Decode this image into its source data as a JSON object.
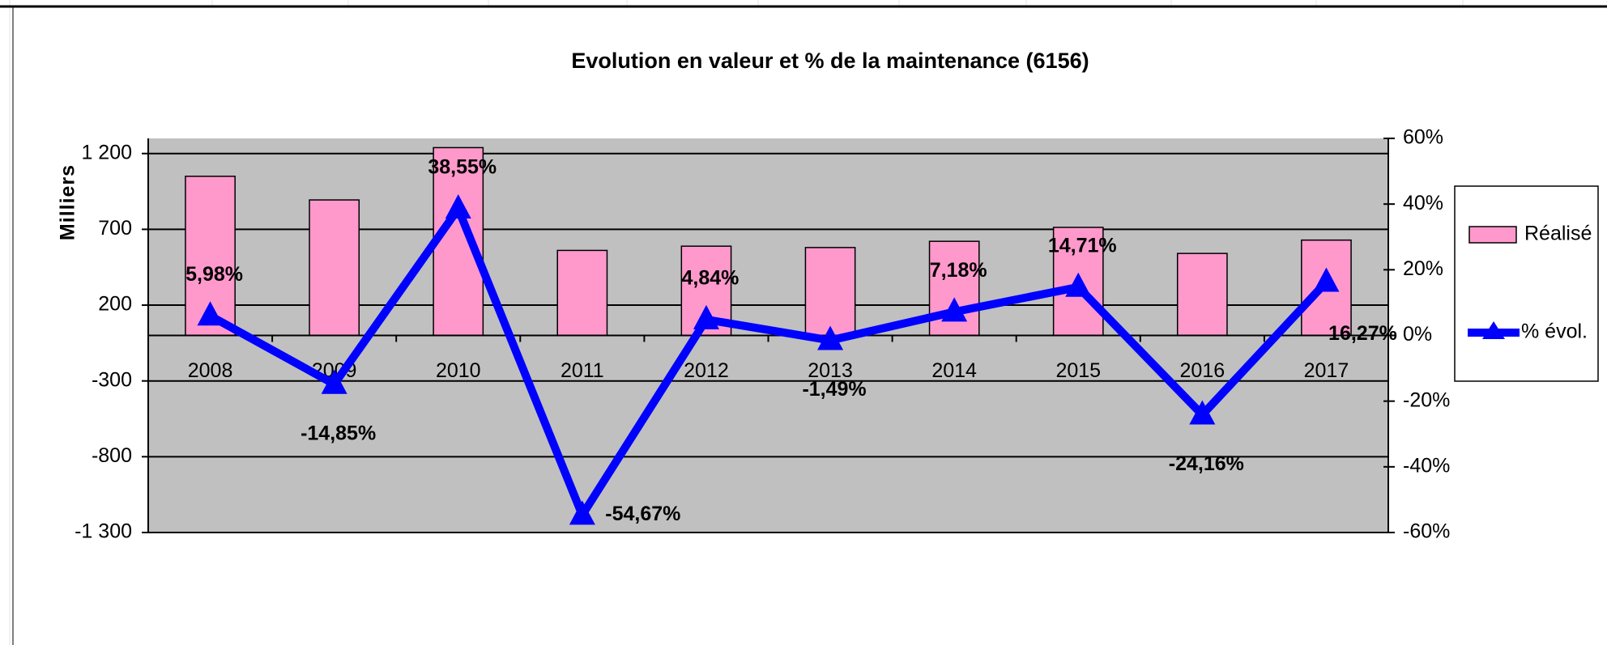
{
  "chart_data": {
    "type": "bar-line",
    "title": "Evolution en valeur et % de la maintenance (6156)",
    "y_label": "Milliers",
    "categories": [
      "2008",
      "2009",
      "2010",
      "2011",
      "2012",
      "2013",
      "2014",
      "2015",
      "2016",
      "2017"
    ],
    "series": [
      {
        "name": "Réalisé",
        "type": "bar",
        "color": "#ff99cc",
        "values": [
          1050,
          894,
          1239,
          561,
          589,
          580,
          621,
          713,
          541,
          629
        ]
      },
      {
        "name": "% évol.",
        "type": "line",
        "axis": "y2",
        "color": "#0000ff",
        "values": [
          5.98,
          -14.85,
          38.55,
          -54.67,
          4.84,
          -1.49,
          7.18,
          14.71,
          -24.16,
          16.27
        ],
        "value_labels": [
          "5,98%",
          "-14,85%",
          "38,55%",
          "-54,67%",
          "4,84%",
          "-1,49%",
          "7,18%",
          "14,71%",
          "-24,16%",
          "16,27%"
        ]
      }
    ],
    "ylim": [
      -1300,
      1300
    ],
    "yticks": [
      {
        "value": -1300,
        "label": "-1 300"
      },
      -800,
      -300,
      200,
      700,
      {
        "value": 1200,
        "label": "1 200"
      }
    ],
    "y2lim": [
      -60,
      60
    ],
    "y2ticks": [
      {
        "value": -60,
        "label": "-60%"
      },
      {
        "value": -40,
        "label": "-40%"
      },
      {
        "value": -20,
        "label": "-20%"
      },
      {
        "value": 0,
        "label": "0%"
      },
      {
        "value": 20,
        "label": "20%"
      },
      {
        "value": 40,
        "label": "40%"
      },
      {
        "value": 60,
        "label": "60%"
      }
    ],
    "grid": true,
    "legend": "right",
    "plot_background": "#c0c0c0"
  }
}
